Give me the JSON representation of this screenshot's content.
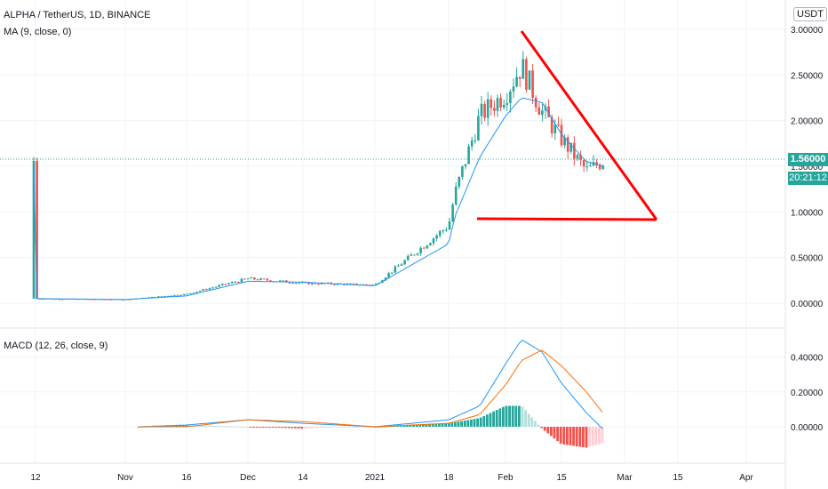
{
  "header": {
    "title": "ALPHA / TetherUS, 1D, BINANCE",
    "ma_label": "MA (9, close, 0)",
    "currency": "USDT"
  },
  "macd_panel": {
    "label": "MACD (12, 26, close, 9)"
  },
  "price_axis": {
    "ticks": [
      "3.00000",
      "2.50000",
      "2.00000",
      "1.50000",
      "1.00000",
      "0.50000",
      "0.00000"
    ],
    "current_price": "1.56000",
    "countdown": "20:21:12"
  },
  "macd_axis": {
    "ticks": [
      "0.40000",
      "0.20000",
      "0.00000"
    ]
  },
  "time_axis": {
    "labels": [
      "12",
      "Nov",
      "16",
      "Dec",
      "14",
      "2021",
      "18",
      "Feb",
      "15",
      "Mar",
      "15",
      "Apr"
    ]
  },
  "colors": {
    "up": "#26a69a",
    "down": "#ef5350",
    "ma": "#2196f3",
    "macd": "#2196f3",
    "signal": "#ff6d00",
    "drawing": "#ff0000",
    "price_tag": "#26a69a"
  },
  "chart_data": [
    {
      "type": "candlestick",
      "series_label": "ALPHA / TetherUS",
      "ylim": [
        0,
        3.1
      ],
      "x": [
        "Oct 12",
        "Nov 1",
        "Nov 16",
        "Dec 1",
        "Dec 14",
        "Jan 1",
        "Jan 18",
        "Jan 21",
        "Jan 25",
        "Feb 1",
        "Feb 5",
        "Feb 10",
        "Feb 15",
        "Feb 20",
        "Feb 23"
      ],
      "close": [
        0.05,
        0.04,
        0.1,
        0.27,
        0.22,
        0.2,
        0.85,
        1.2,
        2.05,
        2.3,
        2.6,
        2.1,
        1.8,
        1.45,
        1.56
      ],
      "ma": [
        0.05,
        0.04,
        0.08,
        0.24,
        0.23,
        0.19,
        0.65,
        0.95,
        1.6,
        2.05,
        2.25,
        2.2,
        1.85,
        1.55,
        1.5
      ],
      "trendline_top": {
        "from": [
          "Feb 5",
          2.95
        ],
        "to": [
          "Mar 8",
          0.9
        ]
      },
      "trendline_bottom": {
        "from": [
          "Jan 22",
          0.91
        ],
        "to": [
          "Mar 8",
          0.9
        ]
      }
    },
    {
      "type": "line",
      "series_label": "MACD (12, 26, close, 9)",
      "ylim": [
        -0.2,
        0.5
      ],
      "x": [
        "Oct 12",
        "Nov 16",
        "Dec 1",
        "Dec 14",
        "Jan 1",
        "Jan 18",
        "Jan 25",
        "Feb 1",
        "Feb 5",
        "Feb 10",
        "Feb 15",
        "Feb 20",
        "Feb 24"
      ],
      "macd": [
        0.0,
        0.01,
        0.04,
        0.02,
        0.0,
        0.04,
        0.12,
        0.36,
        0.5,
        0.43,
        0.25,
        0.08,
        -0.02
      ],
      "signal": [
        0.0,
        0.0,
        0.04,
        0.03,
        0.0,
        0.02,
        0.07,
        0.24,
        0.38,
        0.44,
        0.35,
        0.2,
        0.07
      ]
    }
  ]
}
